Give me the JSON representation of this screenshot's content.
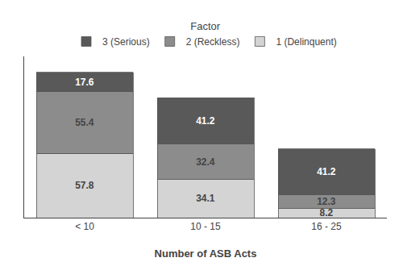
{
  "chart_data": {
    "type": "bar",
    "stacked": true,
    "legend_title": "Factor",
    "x_label": "Number of ASB Acts",
    "categories": [
      "< 10",
      "10 - 15",
      "16 - 25"
    ],
    "series": [
      {
        "name": "1 (Delinquent)",
        "color": "#d4d4d4",
        "values": [
          57.8,
          34.1,
          8.2
        ]
      },
      {
        "name": "2 (Reckless)",
        "color": "#8c8c8c",
        "values": [
          55.4,
          32.4,
          12.3
        ]
      },
      {
        "name": "3 (Serious)",
        "color": "#595959",
        "values": [
          17.6,
          41.2,
          41.2
        ]
      }
    ],
    "ylim": [
      0,
      145
    ],
    "yticks": [],
    "grid": false,
    "legend": "top",
    "data_labels": true,
    "tick_labels": "x"
  }
}
